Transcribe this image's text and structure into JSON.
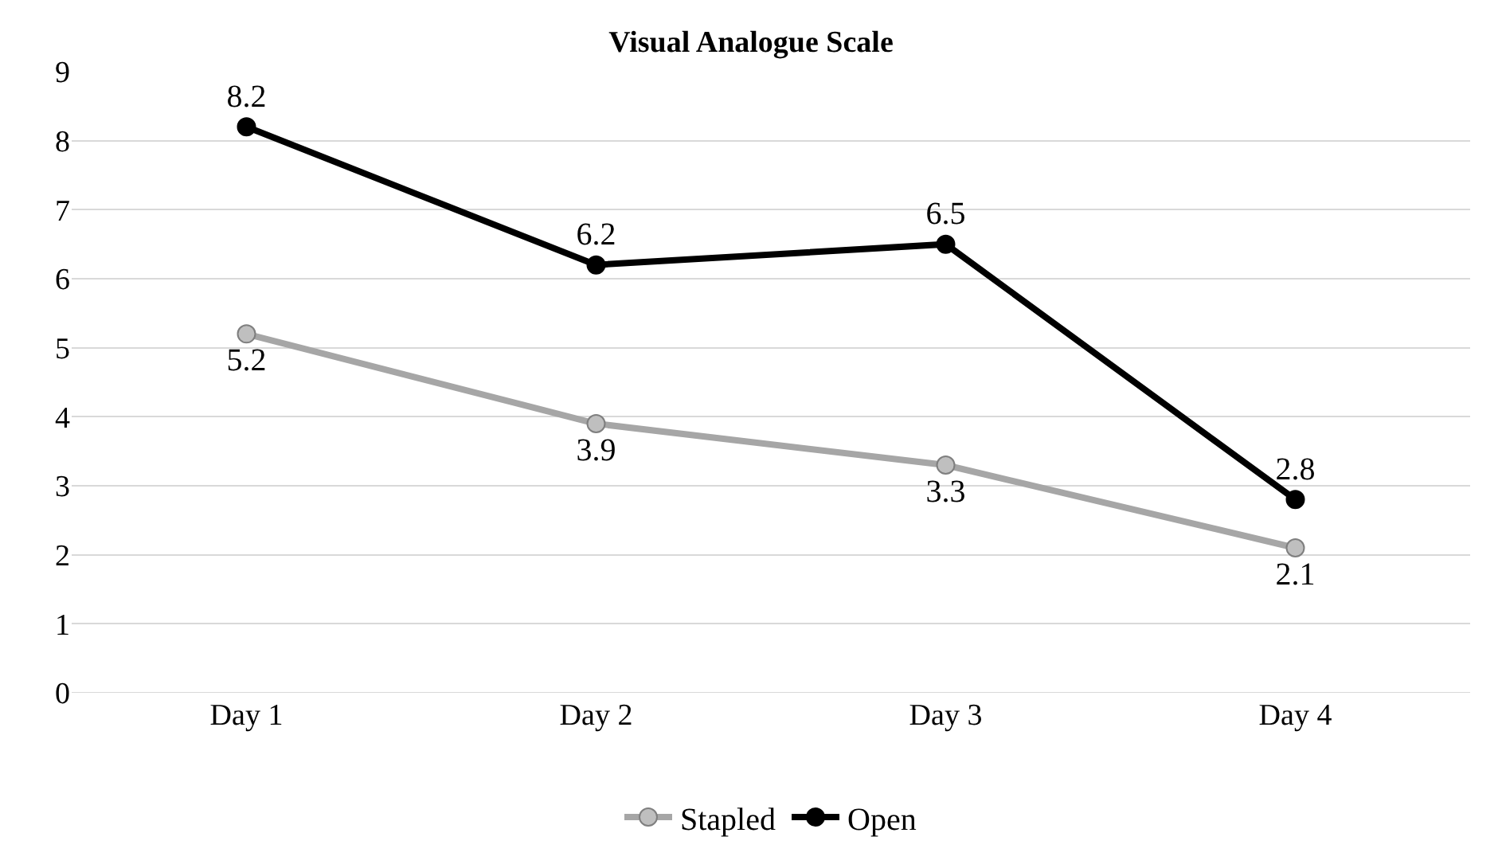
{
  "chart_data": {
    "type": "line",
    "title": "Visual Analogue Scale",
    "categories": [
      "Day 1",
      "Day 2",
      "Day 3",
      "Day 4"
    ],
    "series": [
      {
        "name": "Stapled",
        "color": "#a6a6a6",
        "values": [
          5.2,
          3.9,
          3.3,
          2.1
        ]
      },
      {
        "name": "Open",
        "color": "#000000",
        "values": [
          8.2,
          6.2,
          6.5,
          2.8
        ]
      }
    ],
    "ylim": [
      0,
      9
    ],
    "yticks": [
      0,
      1,
      2,
      3,
      4,
      5,
      6,
      7,
      8,
      9
    ],
    "grid": "y",
    "legend": "bottom",
    "marker": "circle",
    "line_style": "solid",
    "data_labels": true
  }
}
